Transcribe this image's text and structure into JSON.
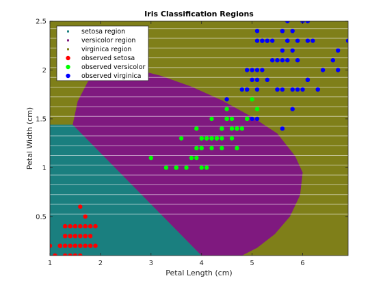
{
  "chart_data": {
    "type": "scatter",
    "title": "Iris Classification Regions",
    "xlabel": "Petal Length (cm)",
    "ylabel": "Petal Width (cm)",
    "xlim": [
      1,
      6.9
    ],
    "ylim": [
      0.1,
      2.5
    ],
    "xticks": [
      "1",
      "2",
      "3",
      "4",
      "5",
      "6"
    ],
    "yticks": [
      "0.5",
      "1",
      "1.5",
      "2",
      "2.5"
    ],
    "grid": false,
    "legend_position": "top-left",
    "colors": {
      "setosa_region": "#1a7f7f",
      "versicolor_region": "#7f197f",
      "virginica_region": "#7f7f19",
      "observed_setosa": "#ff0000",
      "observed_versicolor": "#00ff00",
      "observed_virginica": "#0000ff"
    },
    "legend": [
      "setosa region",
      "versicolor region",
      "virginica region",
      "observed setosa",
      "observed versicolor",
      "observed virginica"
    ],
    "series": [
      {
        "name": "observed setosa",
        "points": [
          [
            1.4,
            0.2
          ],
          [
            1.3,
            0.2
          ],
          [
            1.5,
            0.2
          ],
          [
            1.7,
            0.4
          ],
          [
            1.4,
            0.3
          ],
          [
            1.5,
            0.1
          ],
          [
            1.1,
            0.1
          ],
          [
            1.2,
            0.2
          ],
          [
            1.3,
            0.4
          ],
          [
            1.7,
            0.3
          ],
          [
            1.0,
            0.2
          ],
          [
            1.9,
            0.2
          ],
          [
            1.6,
            0.4
          ],
          [
            1.9,
            0.4
          ],
          [
            1.6,
            0.6
          ],
          [
            1.6,
            0.2
          ],
          [
            1.4,
            0.1
          ],
          [
            1.5,
            0.4
          ],
          [
            1.3,
            0.3
          ],
          [
            1.6,
            0.3
          ],
          [
            1.5,
            0.3
          ],
          [
            1.7,
            0.2
          ],
          [
            1.7,
            0.5
          ],
          [
            1.2,
            0.2
          ],
          [
            1.8,
            0.2
          ],
          [
            1.8,
            0.3
          ],
          [
            1.8,
            0.4
          ],
          [
            1.4,
            0.4
          ],
          [
            1.6,
            0.1
          ],
          [
            1.3,
            0.1
          ]
        ]
      },
      {
        "name": "observed versicolor",
        "points": [
          [
            4.7,
            1.4
          ],
          [
            4.5,
            1.5
          ],
          [
            4.9,
            1.5
          ],
          [
            4.0,
            1.3
          ],
          [
            4.6,
            1.5
          ],
          [
            3.3,
            1.0
          ],
          [
            4.6,
            1.3
          ],
          [
            3.9,
            1.4
          ],
          [
            3.5,
            1.0
          ],
          [
            4.2,
            1.5
          ],
          [
            4.0,
            1.0
          ],
          [
            4.7,
            1.4
          ],
          [
            3.6,
            1.3
          ],
          [
            4.4,
            1.4
          ],
          [
            4.5,
            1.5
          ],
          [
            4.1,
            1.0
          ],
          [
            4.5,
            1.5
          ],
          [
            3.9,
            1.1
          ],
          [
            4.8,
            1.8
          ],
          [
            4.0,
            1.3
          ],
          [
            4.9,
            1.5
          ],
          [
            4.7,
            1.2
          ],
          [
            4.3,
            1.3
          ],
          [
            4.4,
            1.4
          ],
          [
            4.8,
            1.4
          ],
          [
            5.0,
            1.7
          ],
          [
            4.5,
            1.5
          ],
          [
            3.8,
            1.1
          ],
          [
            3.7,
            1.0
          ],
          [
            3.9,
            1.2
          ],
          [
            5.1,
            1.6
          ],
          [
            4.5,
            1.6
          ],
          [
            4.4,
            1.3
          ],
          [
            4.1,
            1.3
          ],
          [
            4.0,
            1.2
          ],
          [
            4.4,
            1.2
          ],
          [
            4.6,
            1.4
          ],
          [
            4.0,
            1.2
          ],
          [
            3.0,
            1.1
          ],
          [
            4.2,
            1.3
          ],
          [
            4.2,
            1.2
          ],
          [
            4.3,
            1.3
          ],
          [
            4.1,
            1.3
          ],
          [
            4.9,
            1.5
          ],
          [
            4.8,
            1.8
          ],
          [
            3.5,
            1.0
          ],
          [
            4.2,
            1.3
          ]
        ]
      },
      {
        "name": "observed virginica",
        "points": [
          [
            6.0,
            2.5
          ],
          [
            5.1,
            1.9
          ],
          [
            5.9,
            2.1
          ],
          [
            5.6,
            1.8
          ],
          [
            5.8,
            2.2
          ],
          [
            6.6,
            2.1
          ],
          [
            4.5,
            1.7
          ],
          [
            6.3,
            1.8
          ],
          [
            5.8,
            1.8
          ],
          [
            6.1,
            2.5
          ],
          [
            5.1,
            2.0
          ],
          [
            5.3,
            1.9
          ],
          [
            5.5,
            2.1
          ],
          [
            5.0,
            2.0
          ],
          [
            5.1,
            2.4
          ],
          [
            5.3,
            2.3
          ],
          [
            5.5,
            1.8
          ],
          [
            6.7,
            2.2
          ],
          [
            6.9,
            2.3
          ],
          [
            5.0,
            1.5
          ],
          [
            5.7,
            2.3
          ],
          [
            4.9,
            2.0
          ],
          [
            6.7,
            2.0
          ],
          [
            4.9,
            1.8
          ],
          [
            5.7,
            2.1
          ],
          [
            6.0,
            1.8
          ],
          [
            4.8,
            1.8
          ],
          [
            5.6,
            2.1
          ],
          [
            5.8,
            1.6
          ],
          [
            6.1,
            1.9
          ],
          [
            6.4,
            2.0
          ],
          [
            5.6,
            2.2
          ],
          [
            5.1,
            1.5
          ],
          [
            5.6,
            1.4
          ],
          [
            6.1,
            2.3
          ],
          [
            5.6,
            2.4
          ],
          [
            5.5,
            1.8
          ],
          [
            5.4,
            2.1
          ],
          [
            5.6,
            2.4
          ],
          [
            5.1,
            2.3
          ],
          [
            5.2,
            2.3
          ],
          [
            5.4,
            2.3
          ],
          [
            5.2,
            2.0
          ],
          [
            5.0,
            1.9
          ],
          [
            6.2,
            2.3
          ],
          [
            5.9,
            2.3
          ],
          [
            5.7,
            2.5
          ],
          [
            5.8,
            2.4
          ],
          [
            6.3,
            1.8
          ],
          [
            5.7,
            2.3
          ],
          [
            5.2,
            2.3
          ],
          [
            5.1,
            1.8
          ],
          [
            5.3,
            2.3
          ],
          [
            6.1,
            1.9
          ],
          [
            5.9,
            1.8
          ],
          [
            4.9,
            1.8
          ]
        ]
      }
    ]
  }
}
